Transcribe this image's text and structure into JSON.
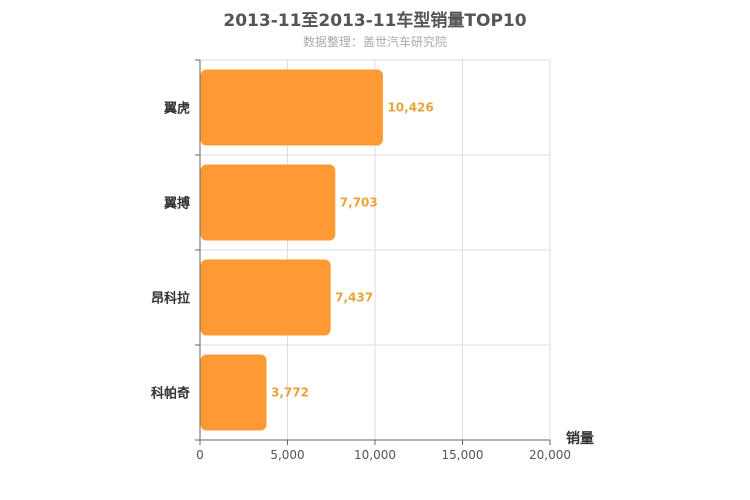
{
  "chart_data": {
    "type": "bar",
    "orientation": "horizontal",
    "title": "2013-11至2013-11车型销量TOP10",
    "subtitle": "数据整理：盖世汽车研究院",
    "categories": [
      "翼虎",
      "翼搏",
      "昂科拉",
      "科帕奇"
    ],
    "values": [
      10426,
      7703,
      7437,
      3772
    ],
    "value_labels": [
      "10,426",
      "7,703",
      "7,437",
      "3,772"
    ],
    "xlabel": "销量",
    "ylabel": "",
    "xlim": [
      0,
      20000
    ],
    "xticks": [
      0,
      5000,
      10000,
      15000,
      20000
    ],
    "xtick_labels": [
      "0",
      "5,000",
      "10,000",
      "15,000",
      "20,000"
    ],
    "grid": true,
    "bar_color": "#FF9933",
    "label_color": "#E8A33D"
  }
}
